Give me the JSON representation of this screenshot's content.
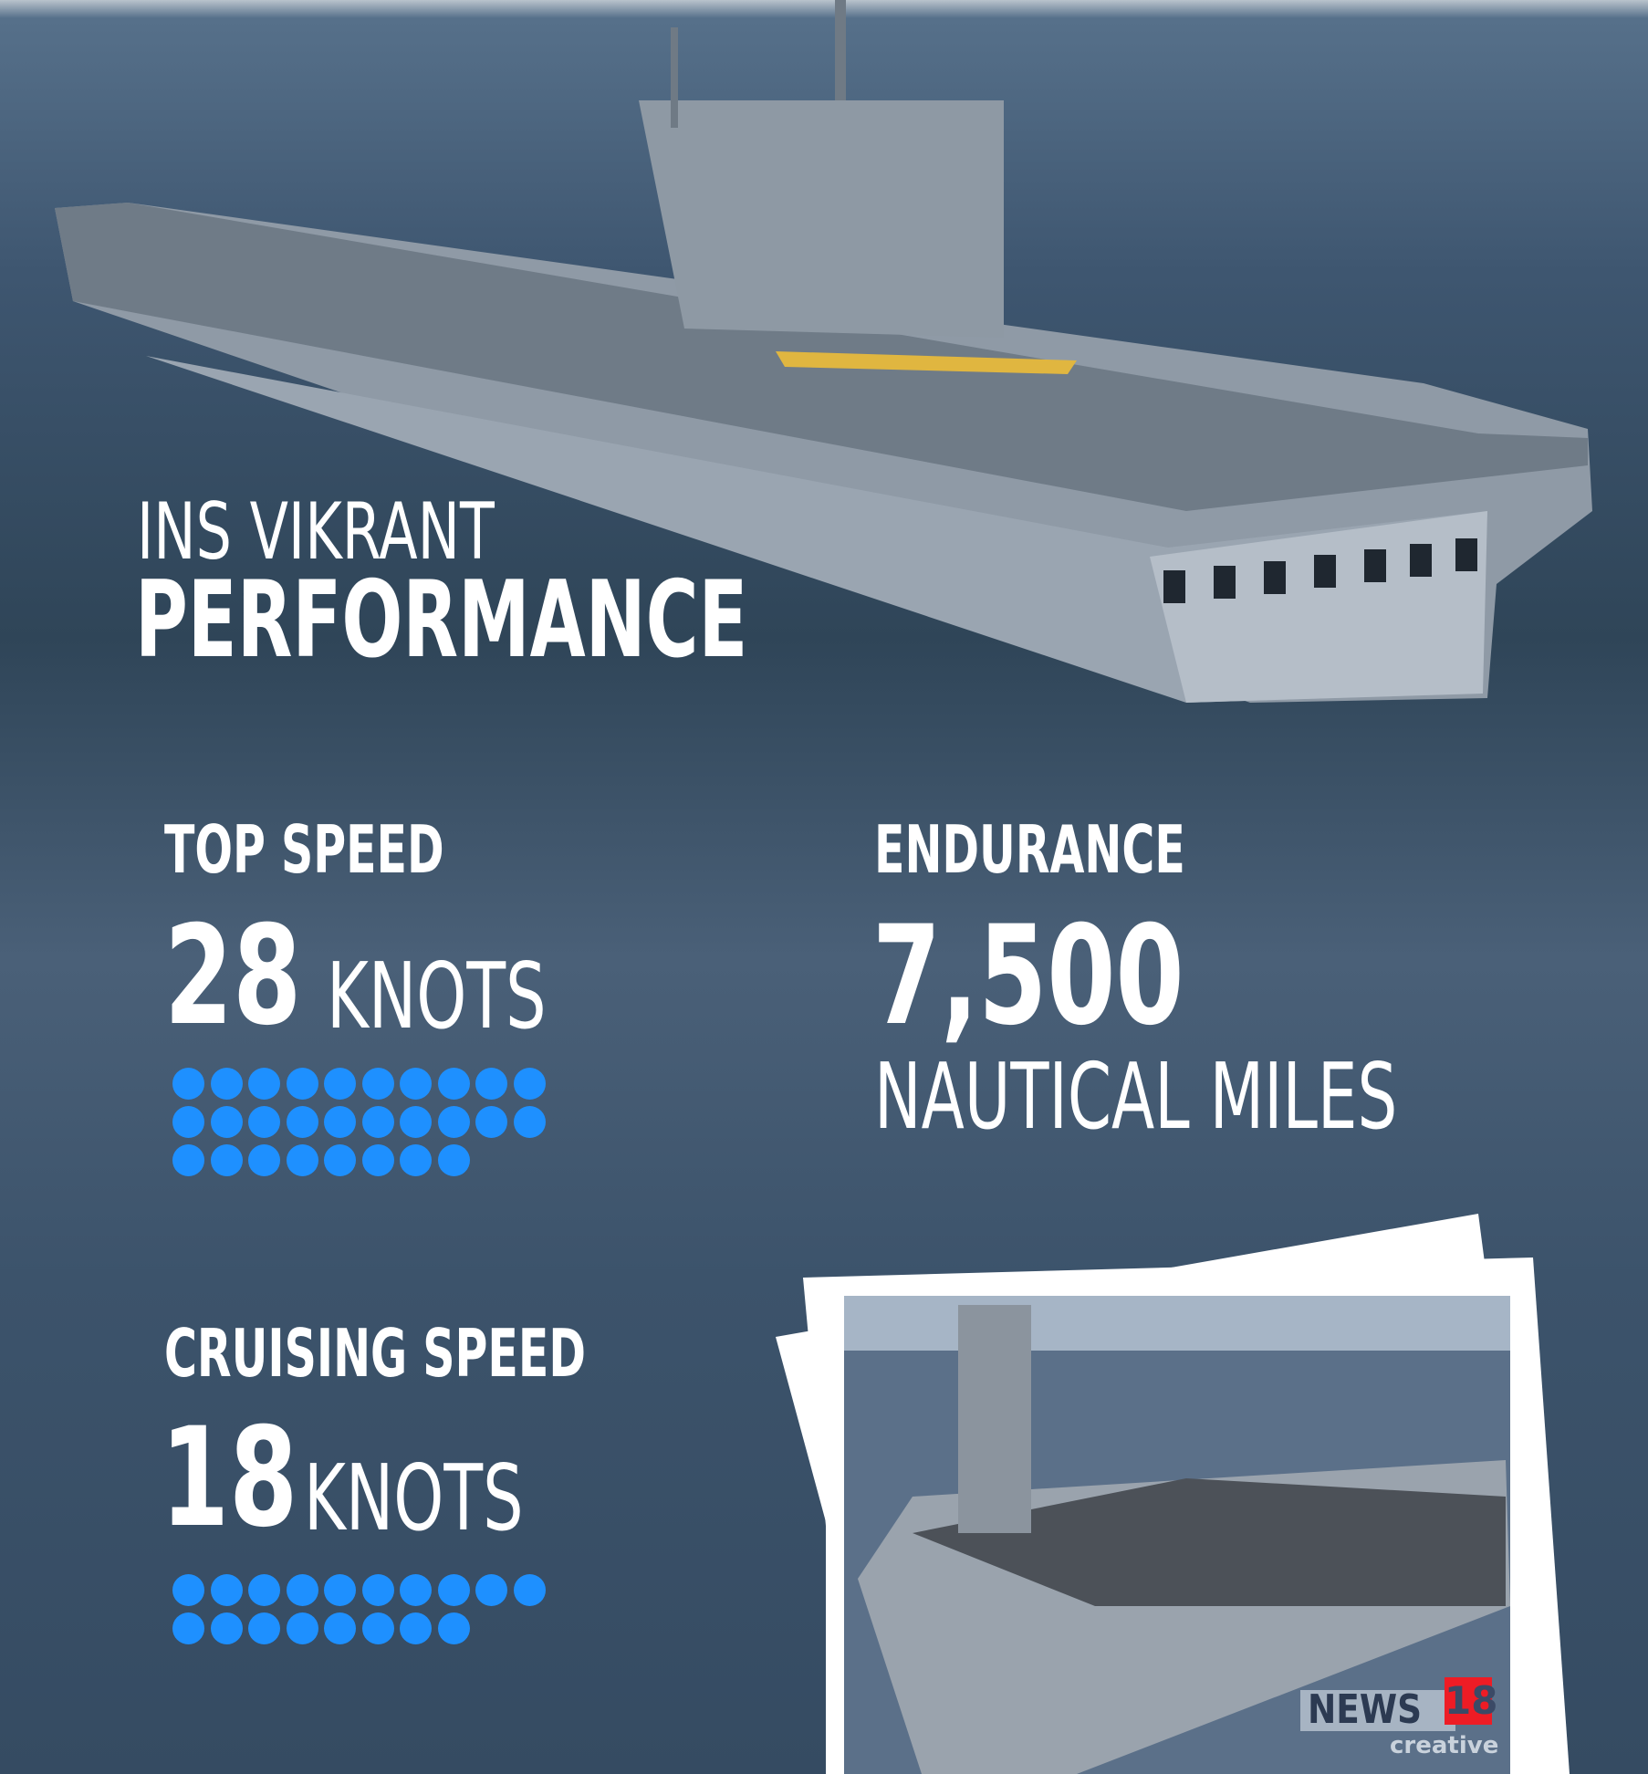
{
  "title": {
    "line1": "INS VIKRANT",
    "line2": "PERFORMANCE"
  },
  "stats": {
    "top_speed": {
      "label": "TOP SPEED",
      "value": "28",
      "unit": "KNOTS",
      "dots": 28
    },
    "endurance": {
      "label": "ENDURANCE",
      "value": "7,500",
      "unit": "NAUTICAL MILES"
    },
    "cruising_speed": {
      "label": "CRUISING SPEED",
      "value": "18",
      "unit": "KNOTS",
      "dots": 18
    }
  },
  "logo": {
    "brand": "NEWS",
    "number": "18",
    "sub": "creative"
  },
  "colors": {
    "dot": "#1e90ff",
    "text": "#ffffff",
    "logo_red": "#ee1c25"
  }
}
